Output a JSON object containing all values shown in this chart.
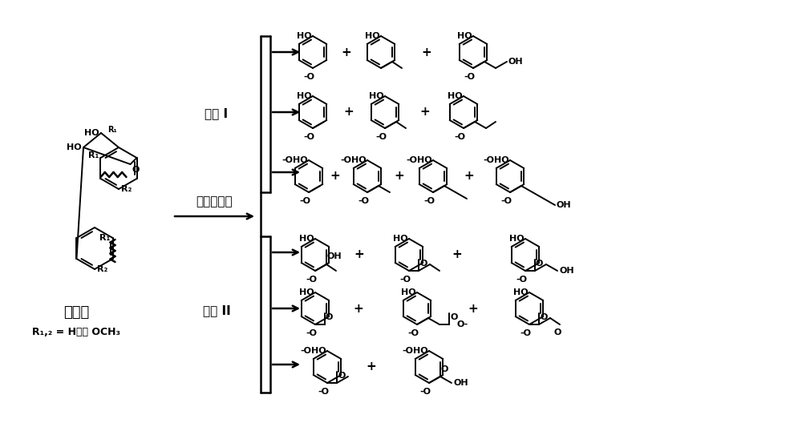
{
  "background_color": "#ffffff",
  "lignin_label": "木质素",
  "r_label": "R₁,₂ = H或者 OCH₃",
  "arrow_label": "新、旧工艺",
  "product1_label": "产物 I",
  "product2_label": "产物 II",
  "line_color": "#000000",
  "text_color": "#000000"
}
